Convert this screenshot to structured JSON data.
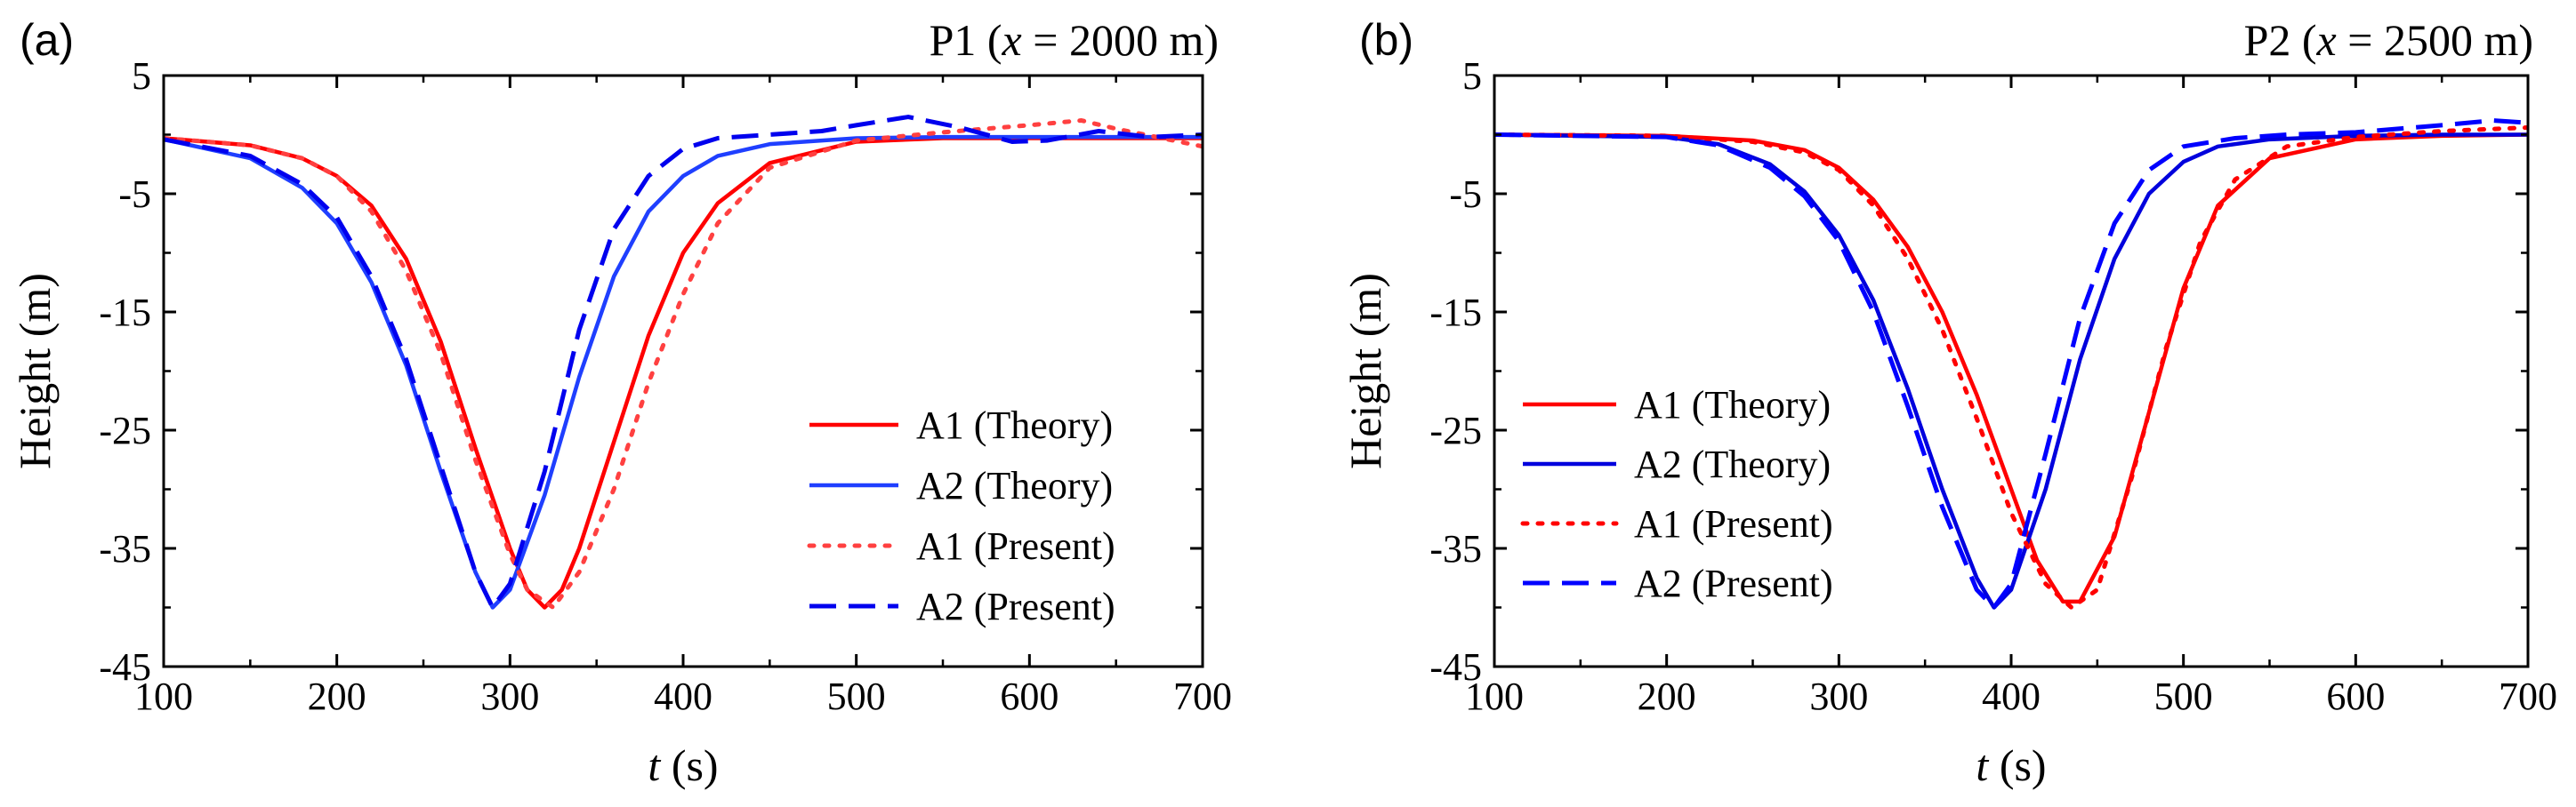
{
  "chart_data": [
    {
      "type": "line",
      "panel_label": "(a)",
      "title": "P1 (x = 2000 m)",
      "title_parts": {
        "prefix": "P1 (",
        "var": "x",
        "suffix": " = 2000 m)"
      },
      "xlabel": "t (s)",
      "xlabel_parts": {
        "var": "t",
        "suffix": " (s)"
      },
      "ylabel": "Height (m)",
      "xlim": [
        100,
        700
      ],
      "ylim": [
        -45,
        5
      ],
      "xticks": [
        100,
        200,
        300,
        400,
        500,
        600,
        700
      ],
      "yticks": [
        5,
        -5,
        -15,
        -25,
        -35,
        -45
      ],
      "grid": false,
      "legend_position": "lower-right",
      "series": [
        {
          "name": "A1 (Theory)",
          "color": "#ff0000",
          "style": "solid",
          "x": [
            100,
            150,
            180,
            200,
            220,
            240,
            260,
            280,
            300,
            310,
            320,
            330,
            340,
            360,
            380,
            400,
            420,
            450,
            500,
            550,
            600,
            650,
            700
          ],
          "y": [
            -0.3,
            -0.9,
            -2,
            -3.5,
            -6,
            -10.5,
            -17.5,
            -26.5,
            -35,
            -38.5,
            -40,
            -38.5,
            -35,
            -26,
            -17,
            -10,
            -5.8,
            -2.4,
            -0.6,
            -0.3,
            -0.3,
            -0.3,
            -0.3
          ]
        },
        {
          "name": "A2 (Theory)",
          "color": "#1f3fff",
          "style": "solid",
          "x": [
            100,
            150,
            180,
            200,
            220,
            240,
            260,
            280,
            290,
            300,
            320,
            340,
            360,
            380,
            400,
            420,
            450,
            500,
            550,
            600,
            650,
            700
          ],
          "y": [
            -0.4,
            -2,
            -4.5,
            -7.5,
            -12.5,
            -19.5,
            -28.5,
            -37,
            -40,
            -38.5,
            -30.5,
            -20.5,
            -12,
            -6.5,
            -3.5,
            -1.8,
            -0.8,
            -0.3,
            -0.2,
            -0.2,
            -0.2,
            -0.2
          ]
        },
        {
          "name": "A1 (Present)",
          "color": "#ff4040",
          "style": "dotted",
          "x": [
            100,
            150,
            180,
            200,
            220,
            240,
            260,
            280,
            300,
            310,
            325,
            340,
            360,
            380,
            400,
            420,
            450,
            500,
            550,
            600,
            630,
            650,
            680,
            700
          ],
          "y": [
            -0.3,
            -0.9,
            -2,
            -3.5,
            -6.5,
            -11.5,
            -18.5,
            -27.5,
            -35.5,
            -38.5,
            -40,
            -37,
            -30,
            -21,
            -13.5,
            -7.5,
            -2.8,
            -0.5,
            0.2,
            0.8,
            1.2,
            0.5,
            -0.4,
            -1
          ]
        },
        {
          "name": "A2 (Present)",
          "color": "#0000ee",
          "style": "dashed",
          "x": [
            100,
            150,
            180,
            200,
            220,
            240,
            260,
            280,
            290,
            300,
            320,
            340,
            360,
            380,
            400,
            420,
            450,
            480,
            500,
            530,
            560,
            590,
            610,
            640,
            670,
            700
          ],
          "y": [
            -0.4,
            -1.8,
            -4.2,
            -7,
            -12,
            -19,
            -28,
            -37,
            -40,
            -38,
            -28.5,
            -16.5,
            -8,
            -3.5,
            -1.2,
            -0.3,
            0,
            0.3,
            0.8,
            1.5,
            0.6,
            -0.6,
            -0.5,
            0.3,
            -0.2,
            0
          ]
        }
      ]
    },
    {
      "type": "line",
      "panel_label": "(b)",
      "title": "P2 (x = 2500 m)",
      "title_parts": {
        "prefix": "P2 (",
        "var": "x",
        "suffix": " = 2500 m)"
      },
      "xlabel": "t (s)",
      "xlabel_parts": {
        "var": "t",
        "suffix": " (s)"
      },
      "ylabel": "Height (m)",
      "xlim": [
        100,
        700
      ],
      "ylim": [
        -45,
        5
      ],
      "xticks": [
        100,
        200,
        300,
        400,
        500,
        600,
        700
      ],
      "yticks": [
        5,
        -5,
        -15,
        -25,
        -35,
        -45
      ],
      "grid": false,
      "legend_position": "lower-left",
      "series": [
        {
          "name": "A1 (Theory)",
          "color": "#ff0000",
          "style": "solid",
          "x": [
            100,
            200,
            250,
            280,
            300,
            320,
            340,
            360,
            380,
            400,
            415,
            430,
            440,
            460,
            480,
            500,
            520,
            550,
            600,
            650,
            700
          ],
          "y": [
            0,
            -0.1,
            -0.5,
            -1.3,
            -2.8,
            -5.5,
            -9.5,
            -15,
            -22,
            -30,
            -36,
            -39.5,
            -39.5,
            -34,
            -23.5,
            -13,
            -6,
            -2,
            -0.4,
            -0.1,
            0
          ]
        },
        {
          "name": "A2 (Theory)",
          "color": "#0000dd",
          "style": "solid",
          "x": [
            100,
            200,
            230,
            260,
            280,
            300,
            320,
            340,
            360,
            380,
            390,
            400,
            420,
            440,
            460,
            480,
            500,
            520,
            550,
            600,
            650,
            700
          ],
          "y": [
            0,
            -0.2,
            -0.8,
            -2.5,
            -4.8,
            -8.5,
            -14,
            -21.5,
            -30,
            -37.5,
            -40,
            -38.5,
            -30,
            -19,
            -10.5,
            -5,
            -2.3,
            -1,
            -0.4,
            -0.1,
            0,
            0
          ]
        },
        {
          "name": "A1 (Present)",
          "color": "#ff0000",
          "style": "dotted",
          "x": [
            100,
            200,
            250,
            280,
            300,
            320,
            340,
            360,
            380,
            400,
            420,
            435,
            450,
            470,
            490,
            510,
            530,
            560,
            600,
            650,
            700
          ],
          "y": [
            0,
            -0.1,
            -0.6,
            -1.5,
            -3,
            -6,
            -10.5,
            -16.5,
            -24,
            -32,
            -38,
            -40,
            -38.5,
            -29,
            -18,
            -9,
            -3.8,
            -1,
            -0.2,
            0.3,
            0.6
          ]
        },
        {
          "name": "A2 (Present)",
          "color": "#0000ff",
          "style": "dashed",
          "x": [
            100,
            200,
            230,
            260,
            280,
            300,
            320,
            340,
            360,
            380,
            390,
            400,
            420,
            440,
            460,
            480,
            500,
            530,
            560,
            600,
            650,
            680,
            700
          ],
          "y": [
            0,
            -0.2,
            -0.9,
            -2.8,
            -5.2,
            -9,
            -15,
            -23,
            -31.5,
            -38.5,
            -40,
            -38,
            -27,
            -15.5,
            -7.5,
            -3,
            -1,
            -0.3,
            0,
            0.2,
            0.8,
            1.2,
            1
          ]
        }
      ]
    }
  ]
}
